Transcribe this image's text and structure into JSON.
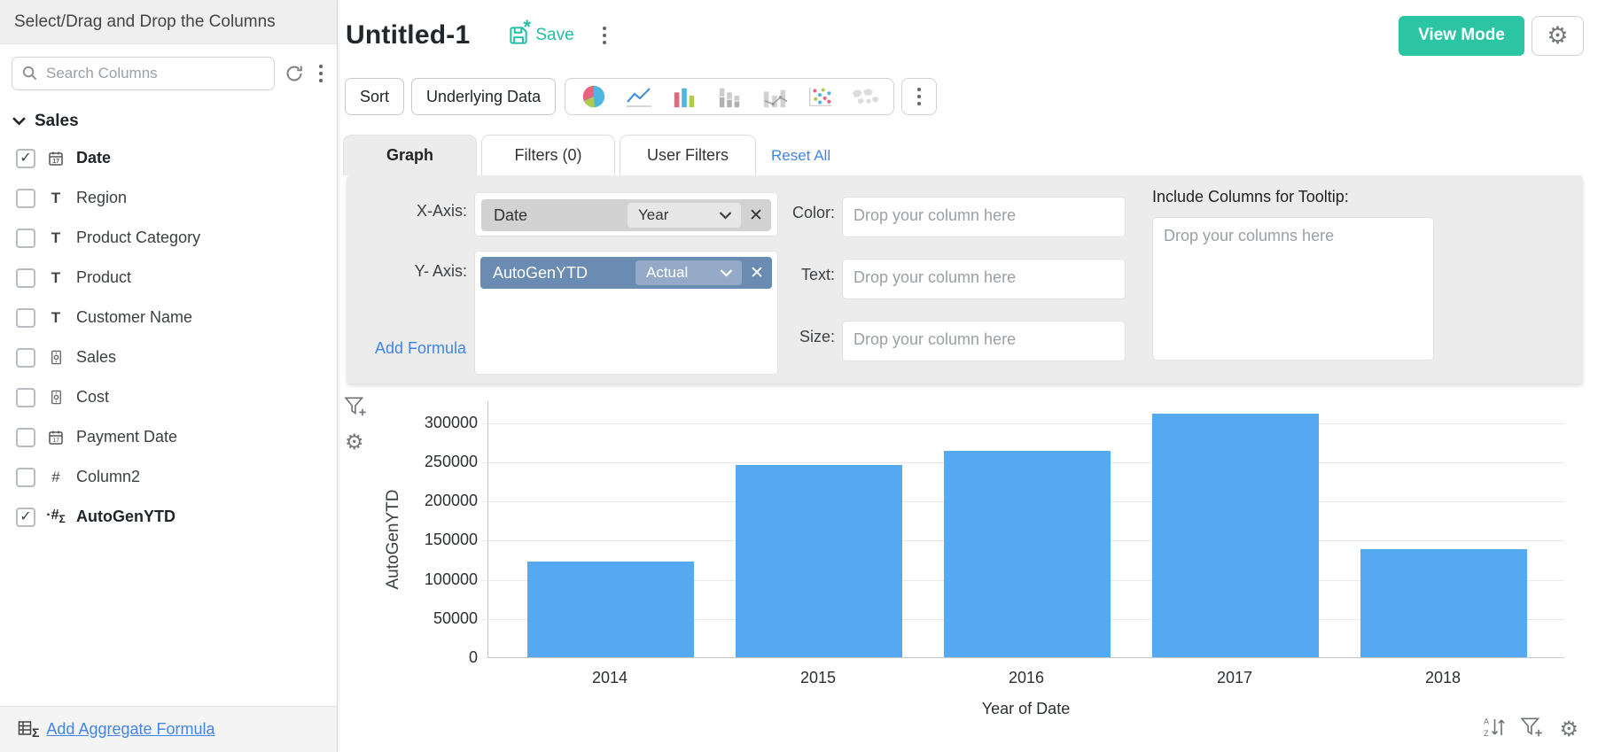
{
  "sidebar": {
    "header": "Select/Drag and Drop the Columns",
    "search_placeholder": "Search Columns",
    "group_label": "Sales",
    "columns": [
      {
        "label": "Date",
        "type": "date",
        "checked": true,
        "bold": true
      },
      {
        "label": "Region",
        "type": "text",
        "checked": false,
        "bold": false
      },
      {
        "label": "Product Category",
        "type": "text",
        "checked": false,
        "bold": false
      },
      {
        "label": "Product",
        "type": "text",
        "checked": false,
        "bold": false
      },
      {
        "label": "Customer Name",
        "type": "text",
        "checked": false,
        "bold": false
      },
      {
        "label": "Sales",
        "type": "currency",
        "checked": false,
        "bold": false
      },
      {
        "label": "Cost",
        "type": "currency",
        "checked": false,
        "bold": false
      },
      {
        "label": "Payment Date",
        "type": "date",
        "checked": false,
        "bold": false
      },
      {
        "label": "Column2",
        "type": "number",
        "checked": false,
        "bold": false
      },
      {
        "label": "AutoGenYTD",
        "type": "formula",
        "checked": true,
        "bold": true
      }
    ],
    "footer_link": "Add Aggregate Formula"
  },
  "header": {
    "title": "Untitled-1",
    "save_label": "Save",
    "view_mode_label": "View Mode"
  },
  "toolbar": {
    "sort_label": "Sort",
    "underlying_data_label": "Underlying Data",
    "chart_type_icons": [
      "pie-chart-icon",
      "line-chart-icon",
      "bar-chart-icon",
      "stacked-bar-chart-icon",
      "combo-chart-icon",
      "scatter-chart-icon",
      "map-chart-icon"
    ]
  },
  "tabs": [
    {
      "label": "Graph",
      "active": true
    },
    {
      "label": "Filters  (0)",
      "active": false
    },
    {
      "label": "User Filters",
      "active": false
    }
  ],
  "reset_all_label": "Reset All",
  "config": {
    "x_axis": {
      "label": "X-Axis:",
      "column": "Date",
      "function": "Year"
    },
    "y_axis": {
      "label": "Y- Axis:",
      "column": "AutoGenYTD",
      "function": "Actual"
    },
    "add_formula_label": "Add Formula",
    "color": {
      "label": "Color:",
      "placeholder": "Drop your column here"
    },
    "text": {
      "label": "Text:",
      "placeholder": "Drop your column here"
    },
    "size": {
      "label": "Size:",
      "placeholder": "Drop your column here"
    },
    "tooltip": {
      "label": "Include Columns for Tooltip:",
      "placeholder": "Drop your columns here"
    }
  },
  "colors": {
    "accent_teal": "#2bc5a3",
    "link_blue": "#4285e8",
    "bar_blue": "#55a9f1",
    "y_pill_blue": "#6a8bb2",
    "x_pill_gray": "#d2d2d2",
    "panel_gray": "#ececec"
  },
  "chart_data": {
    "type": "bar",
    "title": "",
    "categories": [
      "2014",
      "2015",
      "2016",
      "2017",
      "2018"
    ],
    "values": [
      122000,
      245000,
      264000,
      311000,
      138000
    ],
    "series_name": "AutoGenYTD",
    "xlabel": "Year of Date",
    "ylabel": "AutoGenYTD",
    "yticks": [
      0,
      50000,
      100000,
      150000,
      200000,
      250000,
      300000
    ],
    "ylim": [
      0,
      328000
    ],
    "grid": true,
    "legend": false,
    "bar_color": "#55a9f1"
  }
}
